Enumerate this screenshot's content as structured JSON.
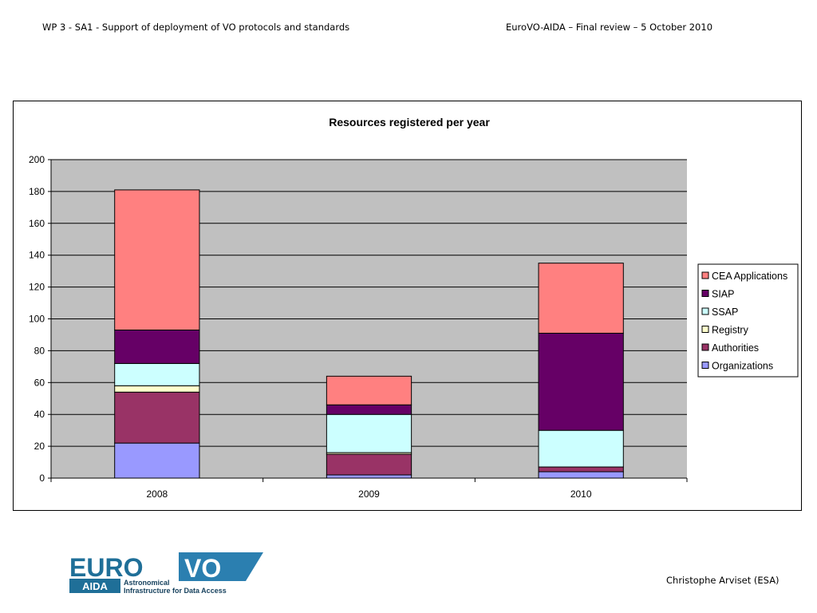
{
  "header": {
    "left": "WP 3  - SA1 - Support of deployment of VO protocols and standards",
    "right": "EuroVO-AIDA – Final review – 5 October 2010"
  },
  "footer": {
    "author": "Christophe Arviset (ESA)",
    "logo": {
      "euro": "EURO",
      "vo": "VO",
      "aida": "AIDA",
      "line1": "Astronomical",
      "line2": "Infrastructure for Data Access"
    }
  },
  "chart_data": {
    "type": "bar",
    "stacked": true,
    "title": "Resources registered per year",
    "categories": [
      "2008",
      "2009",
      "2010"
    ],
    "ylim": [
      0,
      200
    ],
    "yticks": [
      0,
      20,
      40,
      60,
      80,
      100,
      120,
      140,
      160,
      180,
      200
    ],
    "grid": true,
    "legend_position": "right",
    "plot_background": "#c0c0c0",
    "series": [
      {
        "name": "Organizations",
        "color": "#9999ff",
        "values": [
          22,
          2,
          4
        ]
      },
      {
        "name": "Authorities",
        "color": "#993366",
        "values": [
          32,
          13,
          3
        ]
      },
      {
        "name": "Registry",
        "color": "#ffffcc",
        "values": [
          4,
          1,
          0
        ]
      },
      {
        "name": "SSAP",
        "color": "#ccffff",
        "values": [
          14,
          24,
          23
        ]
      },
      {
        "name": "SIAP",
        "color": "#660066",
        "values": [
          21,
          6,
          61
        ]
      },
      {
        "name": "CEA Applications",
        "color": "#ff8080",
        "values": [
          88,
          18,
          44
        ]
      }
    ]
  }
}
